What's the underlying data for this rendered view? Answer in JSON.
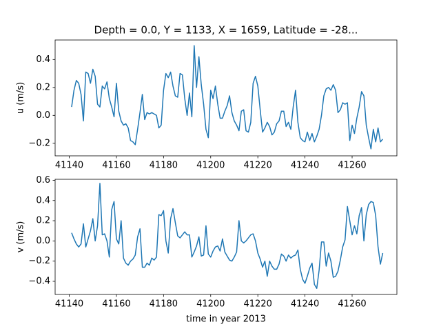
{
  "chart_data": [
    {
      "type": "line",
      "title": "Depth = 0.0, Y = 1133, X = 1659, Latitude = -28...",
      "ylabel": "u (m/s)",
      "x": [
        41141,
        41142,
        41143,
        41144,
        41145,
        41146,
        41147,
        41148,
        41149,
        41150,
        41151,
        41152,
        41153,
        41154,
        41155,
        41156,
        41157,
        41158,
        41159,
        41160,
        41161,
        41162,
        41163,
        41164,
        41165,
        41166,
        41167,
        41168,
        41169,
        41170,
        41171,
        41172,
        41173,
        41174,
        41175,
        41176,
        41177,
        41178,
        41179,
        41180,
        41181,
        41182,
        41183,
        41184,
        41185,
        41186,
        41187,
        41188,
        41189,
        41190,
        41191,
        41192,
        41193,
        41194,
        41195,
        41196,
        41197,
        41198,
        41199,
        41200,
        41201,
        41202,
        41203,
        41204,
        41205,
        41206,
        41207,
        41208,
        41209,
        41210,
        41211,
        41212,
        41213,
        41214,
        41215,
        41216,
        41217,
        41218,
        41219,
        41220,
        41221,
        41222,
        41223,
        41224,
        41225,
        41226,
        41227,
        41228,
        41229,
        41230,
        41231,
        41232,
        41233,
        41234,
        41235,
        41236,
        41237,
        41238,
        41239,
        41240,
        41241,
        41242,
        41243,
        41244,
        41245,
        41246,
        41247,
        41248,
        41249,
        41250,
        41251,
        41252,
        41253,
        41254,
        41255,
        41256,
        41257,
        41258,
        41259,
        41260,
        41261,
        41262,
        41263,
        41264,
        41265,
        41266,
        41267,
        41268,
        41269,
        41270,
        41271,
        41272,
        41273
      ],
      "series": [
        {
          "name": "u",
          "color": "#1f77b4",
          "values": [
            0.06,
            0.18,
            0.25,
            0.23,
            0.15,
            -0.04,
            0.31,
            0.3,
            0.23,
            0.33,
            0.28,
            0.08,
            0.06,
            0.21,
            0.19,
            0.24,
            0.12,
            0.06,
            -0.01,
            0.23,
            0.03,
            -0.04,
            -0.07,
            -0.06,
            -0.09,
            -0.18,
            -0.19,
            -0.21,
            -0.1,
            0.02,
            0.15,
            -0.03,
            0.02,
            0.01,
            0.02,
            0.01,
            0.0,
            -0.09,
            -0.07,
            0.18,
            0.3,
            0.27,
            0.31,
            0.21,
            0.14,
            0.13,
            0.3,
            0.29,
            0.12,
            0.0,
            0.16,
            -0.01,
            0.5,
            0.2,
            0.42,
            0.22,
            0.08,
            -0.1,
            -0.16,
            0.18,
            0.12,
            0.21,
            0.08,
            -0.02,
            -0.02,
            0.03,
            0.07,
            0.14,
            0.02,
            -0.04,
            -0.07,
            -0.11,
            0.03,
            0.04,
            -0.11,
            -0.12,
            -0.05,
            0.23,
            0.28,
            0.21,
            0.04,
            -0.12,
            -0.09,
            -0.05,
            -0.08,
            -0.14,
            -0.12,
            -0.06,
            -0.04,
            0.03,
            0.03,
            -0.08,
            -0.05,
            -0.1,
            0.06,
            0.18,
            -0.05,
            -0.16,
            -0.18,
            -0.19,
            -0.12,
            -0.18,
            -0.13,
            -0.19,
            -0.15,
            -0.1,
            0.0,
            0.14,
            0.19,
            0.2,
            0.18,
            0.22,
            0.18,
            0.02,
            0.04,
            0.09,
            0.08,
            0.09,
            -0.18,
            -0.07,
            -0.13,
            -0.02,
            0.06,
            0.17,
            0.14,
            -0.07,
            -0.16,
            -0.24,
            -0.1,
            -0.19,
            -0.09,
            -0.19,
            -0.17
          ]
        }
      ],
      "xlim": [
        41134,
        41279
      ],
      "xticks": [
        41140,
        41160,
        41180,
        41200,
        41220,
        41240,
        41260
      ],
      "ylim": [
        -0.29,
        0.54
      ],
      "yticks": [
        {
          "value": -0.2,
          "label": "−0.2"
        },
        {
          "value": 0,
          "label": "0.0"
        },
        0.2,
        0.4
      ]
    },
    {
      "type": "line",
      "xlabel": "time in year 2013",
      "ylabel": "v (m/s)",
      "x": [
        41141,
        41142,
        41143,
        41144,
        41145,
        41146,
        41147,
        41148,
        41149,
        41150,
        41151,
        41152,
        41153,
        41154,
        41155,
        41156,
        41157,
        41158,
        41159,
        41160,
        41161,
        41162,
        41163,
        41164,
        41165,
        41166,
        41167,
        41168,
        41169,
        41170,
        41171,
        41172,
        41173,
        41174,
        41175,
        41176,
        41177,
        41178,
        41179,
        41180,
        41181,
        41182,
        41183,
        41184,
        41185,
        41186,
        41187,
        41188,
        41189,
        41190,
        41191,
        41192,
        41193,
        41194,
        41195,
        41196,
        41197,
        41198,
        41199,
        41200,
        41201,
        41202,
        41203,
        41204,
        41205,
        41206,
        41207,
        41208,
        41209,
        41210,
        41211,
        41212,
        41213,
        41214,
        41215,
        41216,
        41217,
        41218,
        41219,
        41220,
        41221,
        41222,
        41223,
        41224,
        41225,
        41226,
        41227,
        41228,
        41229,
        41230,
        41231,
        41232,
        41233,
        41234,
        41235,
        41236,
        41237,
        41238,
        41239,
        41240,
        41241,
        41242,
        41243,
        41244,
        41245,
        41246,
        41247,
        41248,
        41249,
        41250,
        41251,
        41252,
        41253,
        41254,
        41255,
        41256,
        41257,
        41258,
        41259,
        41260,
        41261,
        41262,
        41263,
        41264,
        41265,
        41266,
        41267,
        41268,
        41269,
        41270,
        41271,
        41272,
        41273
      ],
      "series": [
        {
          "name": "v",
          "color": "#1f77b4",
          "values": [
            0.08,
            0.02,
            -0.03,
            -0.06,
            -0.03,
            0.17,
            -0.06,
            0.02,
            0.1,
            0.22,
            0.0,
            0.15,
            0.57,
            0.06,
            0.07,
            0.0,
            -0.16,
            0.31,
            0.39,
            0.02,
            -0.03,
            0.2,
            -0.17,
            -0.22,
            -0.24,
            -0.2,
            -0.18,
            -0.14,
            0.04,
            0.12,
            -0.26,
            -0.26,
            -0.22,
            -0.24,
            -0.17,
            -0.19,
            -0.16,
            0.26,
            0.25,
            0.3,
            0.0,
            -0.12,
            0.22,
            0.32,
            0.18,
            0.05,
            0.03,
            0.06,
            0.09,
            0.06,
            0.06,
            -0.16,
            -0.11,
            -0.05,
            0.04,
            -0.15,
            -0.14,
            0.15,
            -0.13,
            -0.16,
            -0.1,
            -0.06,
            -0.05,
            -0.1,
            0.02,
            -0.11,
            -0.15,
            -0.19,
            -0.2,
            -0.16,
            -0.11,
            0.2,
            0.0,
            -0.02,
            0.0,
            0.03,
            0.06,
            0.07,
            0.0,
            -0.12,
            -0.18,
            -0.26,
            -0.2,
            -0.35,
            -0.2,
            -0.25,
            -0.28,
            -0.28,
            -0.23,
            -0.13,
            -0.15,
            -0.2,
            -0.14,
            -0.17,
            -0.15,
            -0.14,
            -0.09,
            -0.28,
            -0.38,
            -0.42,
            -0.35,
            -0.27,
            -0.22,
            -0.43,
            -0.47,
            -0.29,
            -0.01,
            -0.01,
            -0.25,
            -0.12,
            -0.2,
            -0.36,
            -0.35,
            -0.3,
            -0.19,
            -0.06,
            0.01,
            0.34,
            0.2,
            0.06,
            0.15,
            0.07,
            0.25,
            0.33,
            0.0,
            0.26,
            0.36,
            0.39,
            0.38,
            0.25,
            -0.06,
            -0.23,
            -0.12
          ]
        }
      ],
      "xlim": [
        41134,
        41279
      ],
      "xticks": [
        41140,
        41160,
        41180,
        41200,
        41220,
        41240,
        41260
      ],
      "ylim": [
        -0.53,
        0.61
      ],
      "yticks": [
        {
          "value": -0.4,
          "label": "−0.4"
        },
        {
          "value": -0.2,
          "label": "−0.2"
        },
        {
          "value": 0,
          "label": "0.0"
        },
        0.2,
        0.4,
        0.6
      ]
    }
  ]
}
